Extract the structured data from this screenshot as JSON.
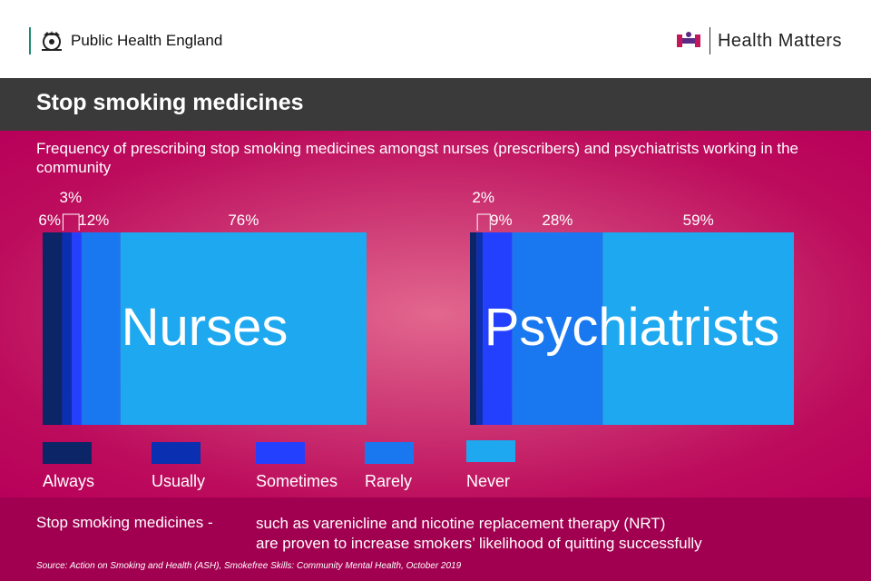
{
  "header": {
    "org_name": "Public Health England",
    "brand_name": "Health Matters",
    "brand_colors": {
      "purple": "#5b2a86",
      "magenta": "#c2185b"
    }
  },
  "title": "Stop smoking medicines",
  "subtitle": "Frequency of prescribing stop smoking medicines amongst nurses (prescribers) and psychiatrists working in the community",
  "footer": {
    "note_lead": "Stop smoking medicines -",
    "note_line1": "such as varenicline and nicotine replacement therapy (NRT)",
    "note_line2": "are proven to increase smokers’ likelihood of quitting successfully",
    "source": "Source: Action on Smoking and Health (ASH), Smokefree Skills: Community Mental Health, October 2019"
  },
  "chart_data": {
    "type": "bar",
    "orientation": "horizontal-stacked",
    "categories": [
      "Always",
      "Usually",
      "Sometimes",
      "Rarely",
      "Never"
    ],
    "colors": [
      "#0b2566",
      "#0a2fb0",
      "#2440ff",
      "#1978f0",
      "#1ea8f0"
    ],
    "legend_position": "bottom",
    "groups": [
      {
        "name": "Nurses",
        "values": [
          6,
          3,
          3,
          12,
          76
        ],
        "labels": [
          "6%",
          "3%",
          "",
          "12%",
          "76%"
        ]
      },
      {
        "name": "Psychiatrists",
        "values": [
          2,
          2,
          9,
          28,
          59
        ],
        "labels": [
          "",
          "2%",
          "9%",
          "28%",
          "59%"
        ]
      }
    ]
  }
}
